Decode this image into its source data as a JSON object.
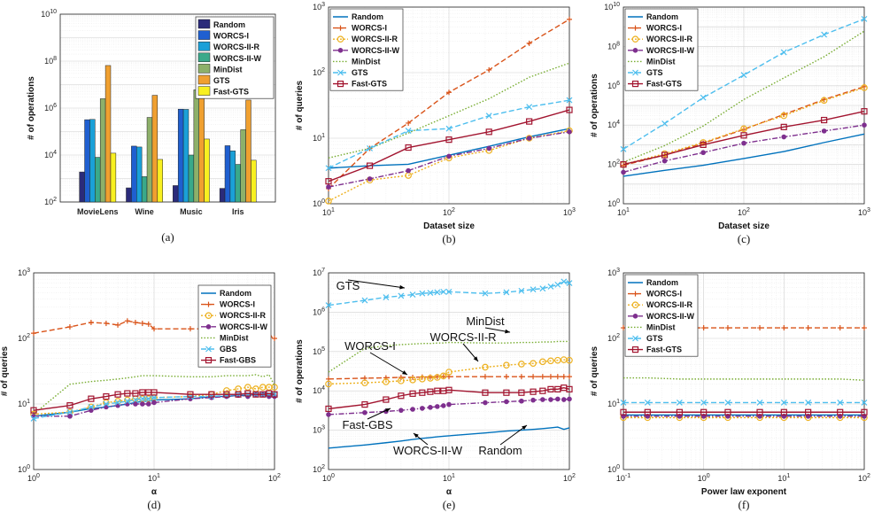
{
  "colors": {
    "Random": "#0072BD",
    "WORCS-I": "#D95319",
    "WORCS-II-R": "#EDB120",
    "WORCS-II-W": "#7E2F8E",
    "MinDist": "#77AC30",
    "GTS": "#4DBEEE",
    "GBS": "#4DBEEE",
    "Fast-GTS": "#A2142F",
    "Fast-GBS": "#A2142F",
    "bar_Random": "#2B2B7A",
    "bar_WORCS-I": "#1F5FD0",
    "bar_WORCS-II-R": "#1AA0D8",
    "bar_WORCS-II-W": "#3AA98A",
    "bar_MinDist": "#8DB06A",
    "bar_GTS": "#F0A030",
    "bar_Fast-GTS": "#F8F020"
  },
  "chart_data": [
    {
      "id": "a",
      "type": "bar",
      "caption": "(a)",
      "xlabel": "",
      "ylabel": "# of operations",
      "yscale": "log",
      "ylim": [
        100,
        10000000000
      ],
      "yticks": [
        "10^2",
        "10^4",
        "10^6",
        "10^8",
        "10^10"
      ],
      "categories": [
        "MovieLens",
        "Wine",
        "Music",
        "Iris"
      ],
      "legend_position": "top-right",
      "series": [
        {
          "name": "Random",
          "values": [
            1900,
            400,
            500,
            380
          ]
        },
        {
          "name": "WORCS-I",
          "values": [
            320000,
            24000,
            900000,
            25000
          ]
        },
        {
          "name": "WORCS-II-R",
          "values": [
            330000,
            22000,
            880000,
            15000
          ]
        },
        {
          "name": "WORCS-II-W",
          "values": [
            8000,
            1200,
            10000,
            4000
          ]
        },
        {
          "name": "MinDist",
          "values": [
            2500000,
            400000,
            6000000,
            120000
          ]
        },
        {
          "name": "GTS",
          "values": [
            65000000,
            3500000,
            180000000,
            2200000
          ]
        },
        {
          "name": "Fast-GTS",
          "values": [
            12000,
            6500,
            48000,
            6000
          ]
        }
      ]
    },
    {
      "id": "b",
      "type": "line",
      "caption": "(b)",
      "xlabel": "Dataset size",
      "ylabel": "# of queries",
      "xscale": "log",
      "yscale": "log",
      "xlim": [
        10,
        1000
      ],
      "ylim": [
        1,
        1000
      ],
      "xticks": [
        "10^1",
        "10^2",
        "10^3"
      ],
      "yticks": [
        "10^0",
        "10^1",
        "10^2",
        "10^3"
      ],
      "legend_position": "top-left",
      "x": [
        10,
        22,
        46,
        100,
        215,
        464,
        1000
      ],
      "series": [
        {
          "name": "Random",
          "values": [
            3.5,
            3.8,
            4,
            5.5,
            7.5,
            10.5,
            14
          ]
        },
        {
          "name": "WORCS-I",
          "values": [
            1.7,
            7,
            17,
            50,
            110,
            280,
            650
          ]
        },
        {
          "name": "WORCS-II-R",
          "values": [
            1.1,
            2.3,
            2.7,
            5,
            6.5,
            10,
            13
          ]
        },
        {
          "name": "WORCS-II-W",
          "values": [
            1.8,
            2.4,
            3.2,
            5.3,
            7,
            10,
            12.5
          ]
        },
        {
          "name": "MinDist",
          "values": [
            5,
            7,
            12,
            22,
            40,
            85,
            140
          ]
        },
        {
          "name": "GTS",
          "values": [
            3.5,
            7,
            13,
            14,
            22,
            30,
            38
          ]
        },
        {
          "name": "Fast-GTS",
          "values": [
            2.2,
            3.8,
            7.2,
            9.5,
            12.5,
            18,
            27
          ]
        }
      ]
    },
    {
      "id": "c",
      "type": "line",
      "caption": "(c)",
      "xlabel": "Dataset size",
      "ylabel": "# of operations",
      "xscale": "log",
      "yscale": "log",
      "xlim": [
        10,
        1000
      ],
      "ylim": [
        1,
        10000000000
      ],
      "xticks": [
        "10^1",
        "10^2",
        "10^3"
      ],
      "yticks": [
        "10^0",
        "10^2",
        "10^4",
        "10^6",
        "10^8",
        "10^10"
      ],
      "legend_position": "top-left",
      "x": [
        10,
        22,
        46,
        100,
        215,
        464,
        1000
      ],
      "series": [
        {
          "name": "Random",
          "values": [
            25,
            50,
            90,
            200,
            450,
            1300,
            3500
          ]
        },
        {
          "name": "WORCS-I",
          "values": [
            90,
            300,
            1200,
            6000,
            35000,
            200000,
            900000
          ]
        },
        {
          "name": "WORCS-II-R",
          "values": [
            100,
            350,
            1300,
            6500,
            30000,
            180000,
            800000
          ]
        },
        {
          "name": "WORCS-II-W",
          "values": [
            40,
            150,
            400,
            1200,
            2500,
            5000,
            10000
          ]
        },
        {
          "name": "MinDist",
          "values": [
            130,
            900,
            9000,
            200000,
            2500000,
            30000000,
            600000000
          ]
        },
        {
          "name": "GTS",
          "values": [
            600,
            12000,
            250000,
            3500000,
            50000000,
            400000000,
            2500000000
          ]
        },
        {
          "name": "Fast-GTS",
          "values": [
            100,
            300,
            1000,
            3000,
            8000,
            18000,
            50000
          ]
        }
      ]
    },
    {
      "id": "d",
      "type": "line",
      "caption": "(d)",
      "xlabel": "α",
      "ylabel": "# of queries",
      "xscale": "log",
      "yscale": "log",
      "xlim": [
        1,
        100
      ],
      "ylim": [
        1,
        1000
      ],
      "xticks": [
        "10^0",
        "10^1",
        "10^2"
      ],
      "yticks": [
        "10^0",
        "10^1",
        "10^2",
        "10^3"
      ],
      "legend_position": "top-right",
      "x": [
        1,
        2,
        3,
        4,
        5,
        6,
        7,
        8,
        9,
        10,
        20,
        30,
        40,
        50,
        60,
        70,
        80,
        90,
        100
      ],
      "series": [
        {
          "name": "Random",
          "values": [
            6.5,
            7.5,
            8.5,
            9,
            9.5,
            10,
            10.5,
            11,
            11,
            11.5,
            12,
            13,
            13,
            13.5,
            13.5,
            14,
            14,
            14,
            14
          ]
        },
        {
          "name": "WORCS-I",
          "values": [
            120,
            150,
            175,
            170,
            160,
            185,
            175,
            170,
            165,
            140,
            140,
            140,
            140,
            140,
            140,
            130,
            120,
            110,
            100
          ]
        },
        {
          "name": "WORCS-II-R",
          "values": [
            7,
            7.5,
            9,
            10.5,
            11,
            11.5,
            12,
            12,
            12,
            12.5,
            13,
            14,
            16,
            17,
            18,
            17,
            18,
            18,
            18
          ]
        },
        {
          "name": "WORCS-II-W",
          "values": [
            6.5,
            6.5,
            8,
            9,
            9.5,
            10,
            10,
            10,
            10,
            10.5,
            12,
            12.5,
            13,
            13.5,
            13,
            14,
            14,
            13,
            13
          ]
        },
        {
          "name": "MinDist",
          "values": [
            7,
            20,
            22,
            23,
            24,
            25,
            26,
            27,
            27,
            27,
            26,
            26,
            27,
            27,
            27,
            28,
            26,
            28,
            19
          ]
        },
        {
          "name": "GBS",
          "values": [
            6,
            7.5,
            9,
            10,
            10.5,
            11,
            11.5,
            12,
            12,
            12.5,
            13,
            13,
            13.5,
            14,
            14,
            14,
            14,
            14,
            14
          ]
        },
        {
          "name": "Fast-GBS",
          "values": [
            8,
            9.5,
            12,
            13,
            14,
            14.5,
            14.5,
            15,
            15,
            15,
            14,
            14,
            14,
            14,
            14.5,
            14,
            14,
            14.5,
            14
          ]
        }
      ]
    },
    {
      "id": "e",
      "type": "line",
      "caption": "(e)",
      "xlabel": "α",
      "ylabel": "# of operations",
      "xscale": "log",
      "yscale": "log",
      "xlim": [
        1,
        100
      ],
      "ylim": [
        100,
        10000000
      ],
      "xticks": [
        "10^0",
        "10^1",
        "10^2"
      ],
      "yticks": [
        "10^2",
        "10^3",
        "10^4",
        "10^5",
        "10^6",
        "10^7"
      ],
      "legend_position": "none",
      "x": [
        1,
        2,
        3,
        4,
        5,
        6,
        7,
        8,
        9,
        10,
        20,
        30,
        40,
        50,
        60,
        70,
        80,
        90,
        100
      ],
      "series": [
        {
          "name": "Random",
          "values": [
            350,
            420,
            480,
            530,
            580,
            620,
            650,
            680,
            700,
            720,
            850,
            950,
            1000,
            1050,
            1100,
            1150,
            1200,
            1050,
            1150
          ]
        },
        {
          "name": "WORCS-I",
          "values": [
            20000,
            21000,
            21500,
            22000,
            22000,
            22500,
            22500,
            23000,
            23000,
            23000,
            23000,
            23000,
            23000,
            23000,
            23000,
            23000,
            23000,
            23000,
            23000
          ]
        },
        {
          "name": "WORCS-II-R",
          "values": [
            15000,
            16000,
            17000,
            18000,
            19000,
            20000,
            21000,
            22000,
            24000,
            30000,
            40000,
            45000,
            48000,
            50000,
            55000,
            58000,
            60000,
            62000,
            60000
          ]
        },
        {
          "name": "WORCS-II-W",
          "values": [
            2500,
            2800,
            3000,
            3200,
            3400,
            3600,
            3800,
            4000,
            4200,
            4500,
            5000,
            5300,
            5500,
            5800,
            6000,
            6000,
            6200,
            6000,
            6200
          ]
        },
        {
          "name": "MinDist",
          "values": [
            30000,
            120000,
            140000,
            150000,
            155000,
            160000,
            160000,
            165000,
            165000,
            170000,
            165000,
            165000,
            170000,
            170000,
            175000,
            175000,
            180000,
            180000,
            180000
          ]
        },
        {
          "name": "GTS",
          "values": [
            1500000,
            2000000,
            2400000,
            2600000,
            2800000,
            3000000,
            3100000,
            3200000,
            3300000,
            3300000,
            3000000,
            3200000,
            3500000,
            3800000,
            4000000,
            4500000,
            5000000,
            6000000,
            5500000
          ]
        },
        {
          "name": "Fast-GBS",
          "values": [
            3500,
            4500,
            6000,
            7500,
            8500,
            9000,
            9500,
            10000,
            10000,
            10500,
            9000,
            9000,
            9000,
            9500,
            10000,
            11000,
            11000,
            12000,
            11000
          ]
        }
      ],
      "annotations": [
        "GTS",
        "MinDist",
        "WORCS-I",
        "WORCS-II-R",
        "Fast-GBS",
        "WORCS-II-W",
        "Random"
      ]
    },
    {
      "id": "f",
      "type": "line",
      "caption": "(f)",
      "xlabel": "Power law exponent",
      "ylabel": "# of queries",
      "xscale": "log",
      "yscale": "log",
      "xlim": [
        0.1,
        100
      ],
      "ylim": [
        1,
        1000
      ],
      "xticks": [
        "10^-1",
        "10^0",
        "10^1",
        "10^2"
      ],
      "yticks": [
        "10^0",
        "10^1",
        "10^2",
        "10^3"
      ],
      "legend_position": "top-left",
      "x": [
        0.1,
        0.2,
        0.5,
        1,
        2,
        5,
        10,
        20,
        50,
        100
      ],
      "series": [
        {
          "name": "Random",
          "values": [
            6.8,
            6.8,
            6.8,
            6.8,
            6.8,
            6.8,
            6.8,
            6.8,
            6.8,
            6.8
          ]
        },
        {
          "name": "WORCS-I",
          "values": [
            145,
            145,
            145,
            145,
            145,
            145,
            145,
            145,
            145,
            145
          ]
        },
        {
          "name": "WORCS-II-R",
          "values": [
            6.2,
            6.2,
            6.2,
            6.2,
            6.2,
            6.2,
            6.2,
            6.2,
            6.2,
            6.2
          ]
        },
        {
          "name": "WORCS-II-W",
          "values": [
            6.5,
            6.5,
            6.5,
            6.5,
            6.5,
            6.5,
            6.5,
            6.5,
            6.5,
            6.5
          ]
        },
        {
          "name": "MinDist",
          "values": [
            25,
            25,
            24,
            24,
            24,
            24,
            24,
            24,
            24,
            23
          ]
        },
        {
          "name": "GTS",
          "values": [
            10.5,
            10.5,
            10.5,
            10.5,
            10.5,
            10.5,
            10.5,
            10.5,
            10.5,
            10.5
          ]
        },
        {
          "name": "Fast-GTS",
          "values": [
            7.5,
            7.5,
            7.5,
            7.5,
            7.5,
            7.5,
            7.5,
            7.5,
            7.5,
            7.5
          ]
        }
      ]
    }
  ]
}
